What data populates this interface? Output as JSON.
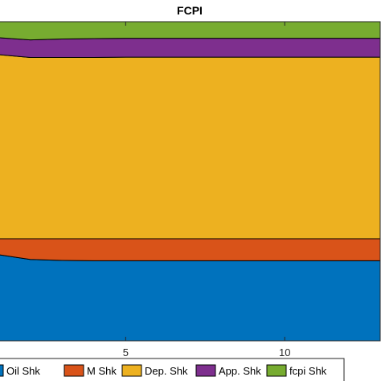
{
  "chart_data": {
    "type": "area",
    "title": "FCPI",
    "xlabel": "",
    "ylabel": "",
    "stacking": "normalized",
    "x": [
      1,
      2,
      3,
      4,
      5,
      6,
      7,
      8,
      9,
      10,
      11,
      12,
      13
    ],
    "xlim": [
      1,
      13
    ],
    "x_ticks": [
      5,
      10
    ],
    "ylim": [
      0,
      1
    ],
    "grid": false,
    "legend_placement": "bottom",
    "series": [
      {
        "name": "Oil Shk",
        "color": "#0072BD",
        "values": [
          0.27,
          0.255,
          0.252,
          0.251,
          0.251,
          0.251,
          0.251,
          0.251,
          0.251,
          0.251,
          0.251,
          0.251,
          0.251
        ]
      },
      {
        "name": "M Shk",
        "color": "#D95319",
        "values": [
          0.05,
          0.065,
          0.068,
          0.069,
          0.069,
          0.069,
          0.069,
          0.069,
          0.069,
          0.069,
          0.069,
          0.069,
          0.069
        ]
      },
      {
        "name": "Dep. Shk",
        "color": "#EDB120",
        "values": [
          0.577,
          0.568,
          0.568,
          0.568,
          0.569,
          0.569,
          0.569,
          0.569,
          0.569,
          0.569,
          0.569,
          0.569,
          0.569
        ]
      },
      {
        "name": "App. Shk",
        "color": "#7E2F8E",
        "values": [
          0.053,
          0.055,
          0.058,
          0.059,
          0.059,
          0.059,
          0.059,
          0.059,
          0.059,
          0.059,
          0.059,
          0.059,
          0.059
        ]
      },
      {
        "name": "fcpi Shk",
        "color": "#77AC30",
        "values": [
          0.05,
          0.057,
          0.054,
          0.053,
          0.052,
          0.052,
          0.052,
          0.052,
          0.052,
          0.052,
          0.052,
          0.052,
          0.052
        ]
      }
    ]
  }
}
